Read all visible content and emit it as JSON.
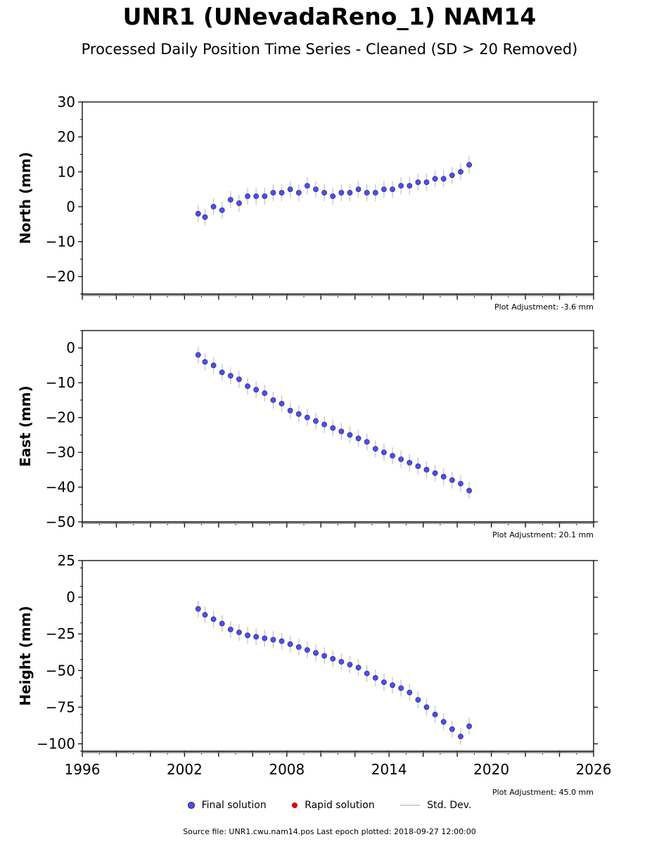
{
  "title": "UNR1 (UNevadaReno_1) NAM14",
  "subtitle": "Processed Daily Position Time Series - Cleaned (SD > 20 Removed)",
  "legend": {
    "final": "Final solution",
    "rapid": "Rapid solution",
    "std": "Std. Dev."
  },
  "footer": "Source file: UNR1.cwu.nam14.pos  Last epoch plotted: 2018-09-27 12:00:00",
  "colors": {
    "final": "#4d4dff",
    "rapid": "#dd0000",
    "std": "#c8c8c8",
    "edge": "#1a1a3a"
  },
  "chart_data": [
    {
      "type": "scatter",
      "ylabel": "North (mm)",
      "adjustment_note": "Plot Adjustment: -3.6 mm",
      "xlim": [
        1996,
        2026
      ],
      "ylim": [
        -25,
        30
      ],
      "yticks": [
        30,
        20,
        10,
        0,
        -10,
        -20
      ],
      "ytick_labels": [
        "30",
        "20",
        "10",
        "0",
        "−10",
        "−20"
      ],
      "x": [
        2002.8,
        2003.2,
        2003.7,
        2004.2,
        2004.7,
        2005.2,
        2005.7,
        2006.2,
        2006.7,
        2007.2,
        2007.7,
        2008.2,
        2008.7,
        2009.2,
        2009.7,
        2010.2,
        2010.7,
        2011.2,
        2011.7,
        2012.2,
        2012.7,
        2013.2,
        2013.7,
        2014.2,
        2014.7,
        2015.2,
        2015.7,
        2016.2,
        2016.7,
        2017.2,
        2017.7,
        2018.2,
        2018.7
      ],
      "y": [
        -2,
        -3,
        0,
        -1,
        2,
        1,
        3,
        3,
        3,
        4,
        4,
        5,
        4,
        6,
        5,
        4,
        3,
        4,
        4,
        5,
        4,
        4,
        5,
        5,
        6,
        6,
        7,
        7,
        8,
        8,
        9,
        10,
        12
      ]
    },
    {
      "type": "scatter",
      "ylabel": "East (mm)",
      "adjustment_note": "Plot Adjustment: 20.1 mm",
      "xlim": [
        1996,
        2026
      ],
      "ylim": [
        -50,
        5
      ],
      "yticks": [
        0,
        -10,
        -20,
        -30,
        -40,
        -50
      ],
      "ytick_labels": [
        "0",
        "−10",
        "−20",
        "−30",
        "−40",
        "−50"
      ],
      "x": [
        2002.8,
        2003.2,
        2003.7,
        2004.2,
        2004.7,
        2005.2,
        2005.7,
        2006.2,
        2006.7,
        2007.2,
        2007.7,
        2008.2,
        2008.7,
        2009.2,
        2009.7,
        2010.2,
        2010.7,
        2011.2,
        2011.7,
        2012.2,
        2012.7,
        2013.2,
        2013.7,
        2014.2,
        2014.7,
        2015.2,
        2015.7,
        2016.2,
        2016.7,
        2017.2,
        2017.7,
        2018.2,
        2018.7
      ],
      "y": [
        -2,
        -4,
        -5,
        -7,
        -8,
        -9,
        -11,
        -12,
        -13,
        -15,
        -16,
        -18,
        -19,
        -20,
        -21,
        -22,
        -23,
        -24,
        -25,
        -26,
        -27,
        -29,
        -30,
        -31,
        -32,
        -33,
        -34,
        -35,
        -36,
        -37,
        -38,
        -39,
        -41
      ]
    },
    {
      "type": "scatter",
      "ylabel": "Height (mm)",
      "adjustment_note": "Plot Adjustment: 45.0 mm",
      "xlim": [
        1996,
        2026
      ],
      "ylim": [
        -105,
        25
      ],
      "yticks": [
        25,
        0,
        -25,
        -50,
        -75,
        -100
      ],
      "ytick_labels": [
        "25",
        "0",
        "−25",
        "−50",
        "−75",
        "−100"
      ],
      "xticks": [
        1996,
        2002,
        2008,
        2014,
        2020,
        2026
      ],
      "xtick_labels": [
        "1996",
        "2002",
        "2008",
        "2014",
        "2020",
        "2026"
      ],
      "x": [
        2002.8,
        2003.2,
        2003.7,
        2004.2,
        2004.7,
        2005.2,
        2005.7,
        2006.2,
        2006.7,
        2007.2,
        2007.7,
        2008.2,
        2008.7,
        2009.2,
        2009.7,
        2010.2,
        2010.7,
        2011.2,
        2011.7,
        2012.2,
        2012.7,
        2013.2,
        2013.7,
        2014.2,
        2014.7,
        2015.2,
        2015.7,
        2016.2,
        2016.7,
        2017.2,
        2017.7,
        2018.2,
        2018.7
      ],
      "y": [
        -8,
        -12,
        -15,
        -18,
        -22,
        -24,
        -26,
        -27,
        -28,
        -29,
        -30,
        -32,
        -34,
        -36,
        -38,
        -40,
        -42,
        -44,
        -46,
        -48,
        -52,
        -55,
        -58,
        -60,
        -62,
        -65,
        -70,
        -75,
        -80,
        -85,
        -90,
        -95,
        -88
      ]
    }
  ]
}
